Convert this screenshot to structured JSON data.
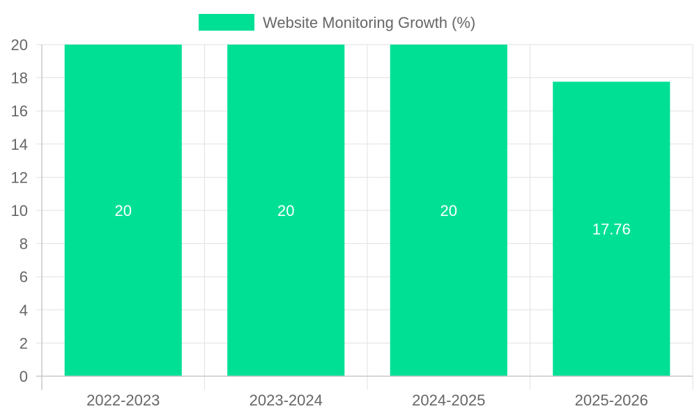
{
  "chart_data": {
    "type": "bar",
    "categories": [
      "2022-2023",
      "2023-2024",
      "2024-2025",
      "2025-2026"
    ],
    "series": [
      {
        "name": "Website Monitoring Growth (%)",
        "values": [
          20,
          20,
          20,
          17.76
        ],
        "color": "#00e095"
      }
    ],
    "title": "",
    "xlabel": "",
    "ylabel": "",
    "ylim": [
      0,
      20
    ],
    "yticks": [
      "0",
      "2",
      "4",
      "6",
      "8",
      "10",
      "12",
      "14",
      "16",
      "18",
      "20"
    ],
    "data_labels": [
      "20",
      "20",
      "20",
      "17.76"
    ],
    "grid": true,
    "legend_position": "top-center"
  }
}
